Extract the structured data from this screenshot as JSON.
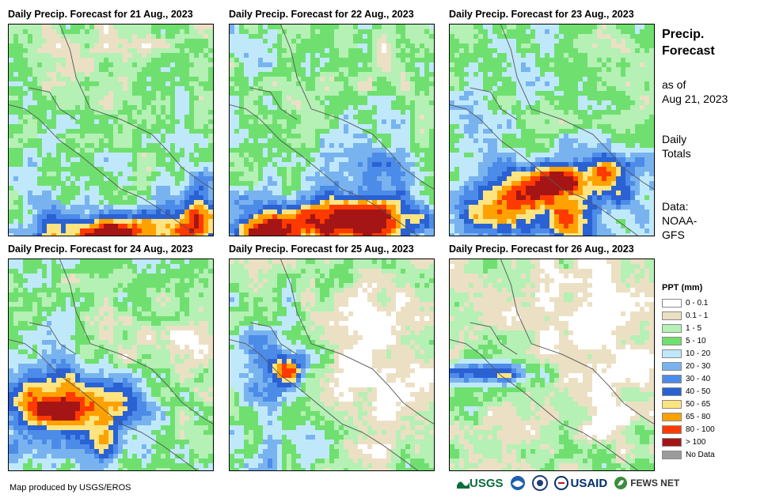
{
  "maps": [
    {
      "title": "Daily Precip. Forecast for 21 Aug., 2023",
      "pattern": "d21"
    },
    {
      "title": "Daily Precip. Forecast for 22 Aug., 2023",
      "pattern": "d22"
    },
    {
      "title": "Daily Precip. Forecast for 23 Aug., 2023",
      "pattern": "d23"
    },
    {
      "title": "Daily Precip. Forecast for 24 Aug., 2023",
      "pattern": "d24"
    },
    {
      "title": "Daily Precip. Forecast for 25 Aug., 2023",
      "pattern": "d25"
    },
    {
      "title": "Daily Precip. Forecast for 26 Aug., 2023",
      "pattern": "d26"
    }
  ],
  "side_panel": {
    "title_line1": "Precip.",
    "title_line2": "Forecast",
    "asof_line1": "as of",
    "asof_line2": "Aug 21, 2023",
    "totals_line1": "Daily",
    "totals_line2": "Totals",
    "data_line1": "Data:",
    "data_line2": "NOAA-",
    "data_line3": "GFS"
  },
  "legend": {
    "title": "PPT (mm)",
    "items": [
      {
        "label": "0 - 0.1",
        "color": "#ffffff"
      },
      {
        "label": "0.1 - 1",
        "color": "#ece0c4"
      },
      {
        "label": "1 - 5",
        "color": "#b5f0b5"
      },
      {
        "label": "5 - 10",
        "color": "#6fe06f"
      },
      {
        "label": "10 - 20",
        "color": "#bfe9fb"
      },
      {
        "label": "20 - 30",
        "color": "#79b3ef"
      },
      {
        "label": "30 - 40",
        "color": "#4d8be8"
      },
      {
        "label": "40 - 50",
        "color": "#2a62d4"
      },
      {
        "label": "50 - 65",
        "color": "#ffe480"
      },
      {
        "label": "65 - 80",
        "color": "#ffa100"
      },
      {
        "label": "80 - 100",
        "color": "#ff3a00"
      },
      {
        "label": "> 100",
        "color": "#a51515"
      },
      {
        "label": "No Data",
        "color": "#9b9b9b"
      }
    ]
  },
  "footer": {
    "credit": "Map produced by USGS/EROS"
  },
  "logos": {
    "usgs": "USGS",
    "usaid": "USAID",
    "fewsnet": "FEWS NET"
  }
}
